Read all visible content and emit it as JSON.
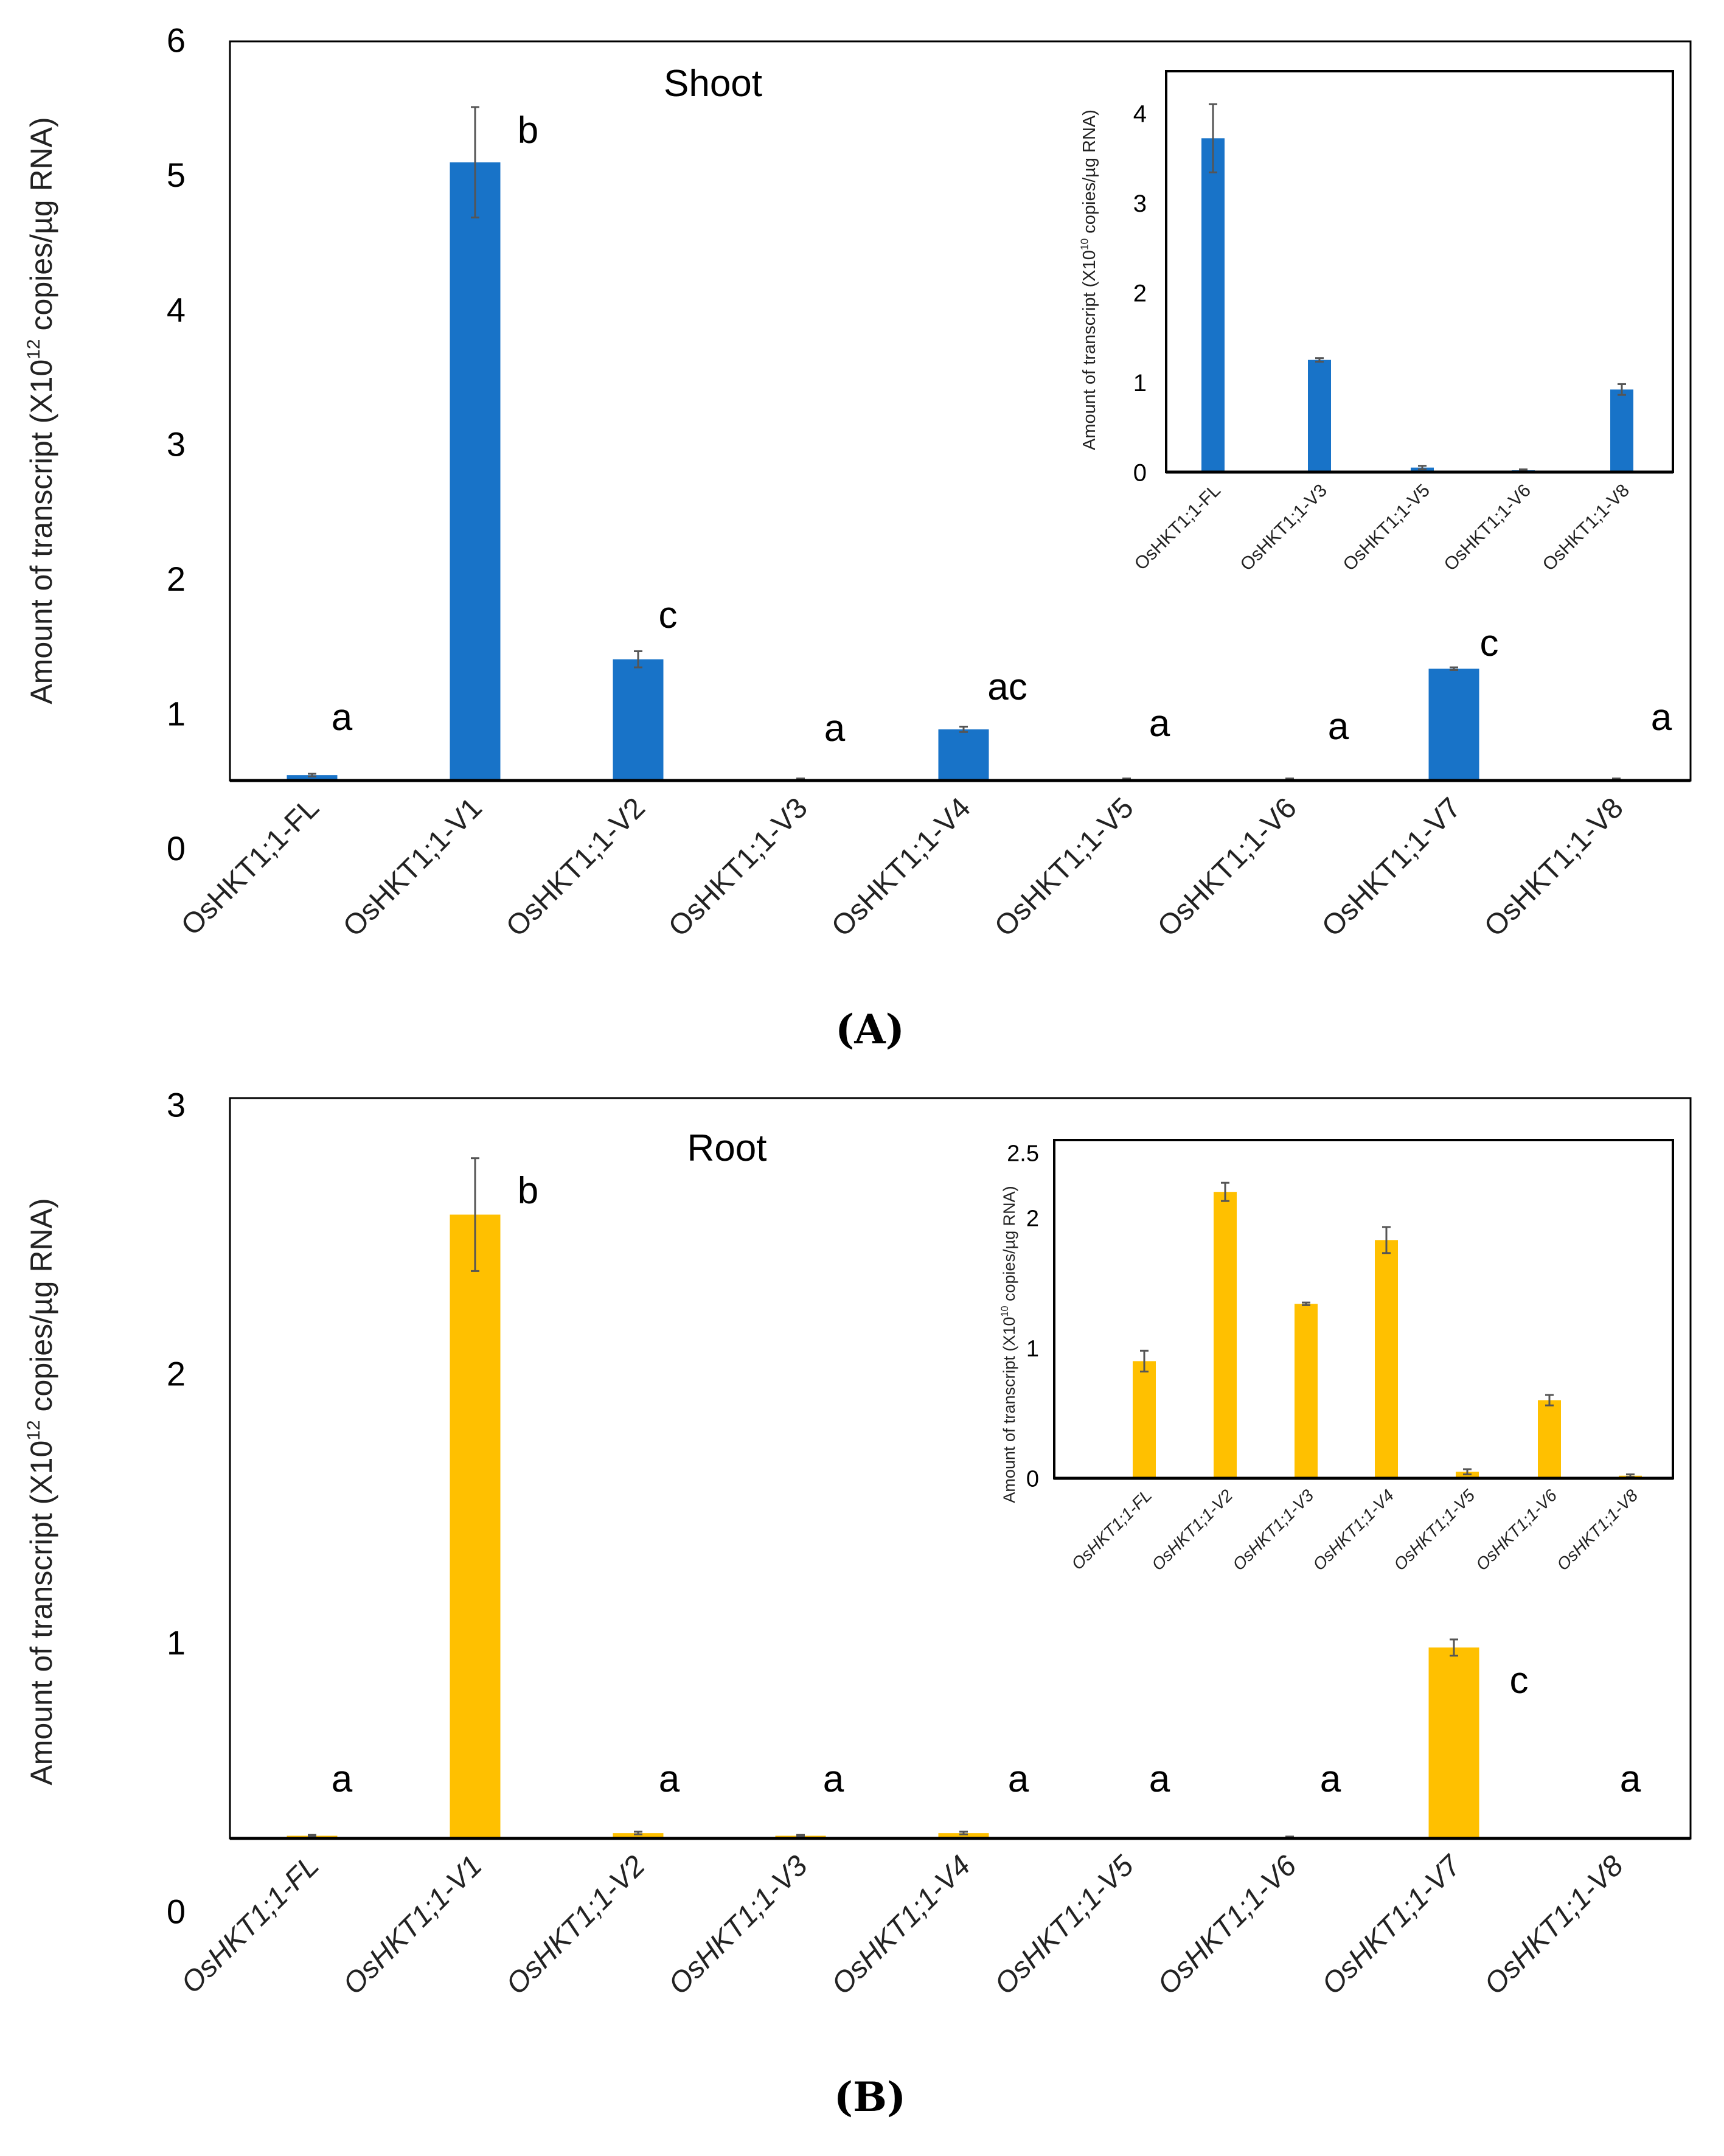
{
  "captions": {
    "a": "(A)",
    "b": "(B)"
  },
  "colors": {
    "shoot": "#1873C8",
    "root": "#FFC000",
    "error": "#555555",
    "axis": "#000000"
  },
  "chart_data": [
    {
      "id": "shoot-main",
      "type": "bar",
      "title": "Shoot",
      "ylabel": "Amount of transcript (X10^12 copies/µg RNA)",
      "ylabel_parts": [
        "Amount of transcript (X10",
        "12",
        " copies/µg RNA)"
      ],
      "yticks": [
        "0",
        "1",
        "2",
        "3",
        "4",
        "5",
        "6"
      ],
      "ylim": [
        0,
        6
      ],
      "categories": [
        "OsHKT1;1-FL",
        "OsHKT1;1-V1",
        "OsHKT1;1-V2",
        "OsHKT1;1-V3",
        "OsHKT1;1-V4",
        "OsHKT1;1-V5",
        "OsHKT1;1-V6",
        "OsHKT1;1-V7",
        "OsHKT1;1-V8"
      ],
      "values": [
        0.04,
        4.59,
        0.9,
        0.01,
        0.38,
        0.01,
        0.01,
        0.83,
        0.01
      ],
      "errors": [
        0.01,
        0.41,
        0.06,
        0.005,
        0.02,
        0.005,
        0.005,
        0.01,
        0.005
      ],
      "significance": [
        "a",
        "b",
        "c",
        "a",
        "ac",
        "a",
        "a",
        "c",
        "a"
      ],
      "color_key": "shoot",
      "italic_labels": false
    },
    {
      "id": "shoot-inset",
      "type": "bar",
      "ylabel": "Amount of transcript (X10^10 copies/µg RNA)",
      "ylabel_parts": [
        "Amount of transcript (X10",
        "10",
        " copies/µg RNA)"
      ],
      "yticks": [
        "0",
        "1",
        "2",
        "3",
        "4"
      ],
      "ylim": [
        0,
        4.5
      ],
      "categories": [
        "OsHKT1;1-FL",
        "OsHKT1;1-V3",
        "OsHKT1;1-V5",
        "OsHKT1;1-V6",
        "OsHKT1;1-V8"
      ],
      "values": [
        3.72,
        1.25,
        0.05,
        0.02,
        0.92
      ],
      "errors": [
        0.38,
        0.02,
        0.02,
        0.01,
        0.06
      ],
      "color_key": "shoot",
      "italic_labels": false
    },
    {
      "id": "root-main",
      "type": "bar",
      "title": "Root",
      "ylabel": "Amount of transcript (X10^12 copies/µg RNA)",
      "ylabel_parts": [
        "Amount of transcript (X10",
        "12",
        " copies/µg RNA)"
      ],
      "yticks": [
        "0",
        "1",
        "2",
        "3"
      ],
      "ylim": [
        0,
        3
      ],
      "categories": [
        "OsHKT1;1-FL",
        "OsHKT1;1-V1",
        "OsHKT1;1-V2",
        "OsHKT1;1-V3",
        "OsHKT1;1-V4",
        "OsHKT1;1-V5",
        "OsHKT1;1-V6",
        "OsHKT1;1-V7",
        "OsHKT1;1-V8"
      ],
      "values": [
        0.01,
        2.32,
        0.02,
        0.01,
        0.02,
        0.0,
        0.005,
        0.71,
        0.0
      ],
      "errors": [
        0.003,
        0.21,
        0.005,
        0.003,
        0.005,
        0,
        0.002,
        0.03,
        0
      ],
      "significance": [
        "a",
        "b",
        "a",
        "a",
        "a",
        "a",
        "a",
        "c",
        "a"
      ],
      "color_key": "root",
      "italic_labels": true
    },
    {
      "id": "root-inset",
      "type": "bar",
      "ylabel": "Amount of transcript (X10^10 copies/µg RNA)",
      "ylabel_parts": [
        "Amount of transcript (X10",
        "10",
        " copies/µg RNA)"
      ],
      "yticks": [
        "0",
        "1",
        "2",
        "2.5"
      ],
      "ylim": [
        0,
        2.5
      ],
      "categories": [
        "OsHKT1;1-FL",
        "OsHKT1;1-V2",
        "OsHKT1;1-V3",
        "OsHKT1;1-V4",
        "OsHKT1;1-V5",
        "OsHKT1;1-V6",
        "OsHKT1;1-V8"
      ],
      "values": [
        0.9,
        2.2,
        1.34,
        1.83,
        0.05,
        0.6,
        0.02
      ],
      "errors": [
        0.08,
        0.07,
        0.01,
        0.1,
        0.02,
        0.04,
        0.01
      ],
      "color_key": "root",
      "italic_labels": true
    }
  ]
}
